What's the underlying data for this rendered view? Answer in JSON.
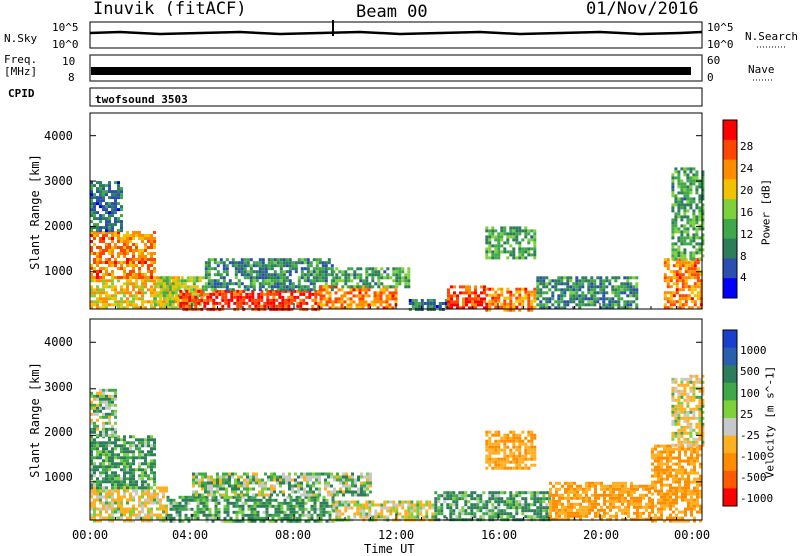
{
  "header": {
    "station": "Inuvik (fitACF)",
    "beam": "Beam 00",
    "date": "01/Nov/2016"
  },
  "strips": {
    "nsky_label": "N.Sky",
    "nsky_ticks": [
      "10^5",
      "10^0"
    ],
    "nsearch_ticks": [
      "10^5",
      "10^0"
    ],
    "nsearch_label": "N.Search",
    "freq_label": "Freq.",
    "freq_unit": "[MHz]",
    "freq_ticks": [
      "10",
      "8"
    ],
    "nave_ticks": [
      "60",
      "0"
    ],
    "nave_label": "Nave",
    "cpid_label": "CPID",
    "cpid_value": "twofsound 3503"
  },
  "colors": {
    "power": [
      "#0000ff",
      "#2a4fb0",
      "#2e7d5a",
      "#3fa84a",
      "#7fd13b",
      "#f2c200",
      "#ff8c00",
      "#ff4500",
      "#ff0000"
    ],
    "velocity": [
      "#1a3fcf",
      "#2a5fb0",
      "#2e7d5a",
      "#3fa84a",
      "#7fd13b",
      "#c8c8c8",
      "#ffb020",
      "#ff8c00",
      "#ff5a00",
      "#ff0000"
    ]
  },
  "chart_data": [
    {
      "type": "heatmap",
      "name": "power-panel",
      "xlabel": "",
      "ylabel": "Slant Range [km]",
      "xlim": [
        "00:00",
        "24:00"
      ],
      "ylim": [
        180,
        4500
      ],
      "y_ticks": [
        1000,
        2000,
        3000,
        4000
      ],
      "colorbar": {
        "label": "Power [dB]",
        "ticks": [
          4,
          8,
          12,
          16,
          20,
          24,
          28
        ],
        "range": [
          0,
          32
        ]
      },
      "regions": [
        {
          "x0": 0.0,
          "x1": 3.5,
          "y0": 180,
          "y1": 900,
          "value": 20
        },
        {
          "x0": 0.0,
          "x1": 2.5,
          "y0": 900,
          "y1": 1900,
          "value": 24
        },
        {
          "x0": 0.0,
          "x1": 1.2,
          "y0": 1900,
          "y1": 3000,
          "value": 8
        },
        {
          "x0": 2.5,
          "x1": 4.5,
          "y0": 300,
          "y1": 900,
          "value": 16
        },
        {
          "x0": 3.5,
          "x1": 9.0,
          "y0": 180,
          "y1": 600,
          "value": 28
        },
        {
          "x0": 4.5,
          "x1": 9.5,
          "y0": 600,
          "y1": 1300,
          "value": 10
        },
        {
          "x0": 9.0,
          "x1": 12.0,
          "y0": 180,
          "y1": 700,
          "value": 24
        },
        {
          "x0": 9.5,
          "x1": 12.5,
          "y0": 700,
          "y1": 1100,
          "value": 12
        },
        {
          "x0": 12.5,
          "x1": 14.0,
          "y0": 180,
          "y1": 400,
          "value": 8
        },
        {
          "x0": 14.0,
          "x1": 15.5,
          "y0": 180,
          "y1": 700,
          "value": 28
        },
        {
          "x0": 15.5,
          "x1": 17.5,
          "y0": 180,
          "y1": 650,
          "value": 24
        },
        {
          "x0": 17.5,
          "x1": 21.5,
          "y0": 180,
          "y1": 900,
          "value": 10
        },
        {
          "x0": 15.5,
          "x1": 17.5,
          "y0": 1300,
          "y1": 2000,
          "value": 12
        },
        {
          "x0": 22.5,
          "x1": 24.0,
          "y0": 180,
          "y1": 1300,
          "value": 24
        },
        {
          "x0": 22.8,
          "x1": 24.0,
          "y0": 1300,
          "y1": 3300,
          "value": 12
        }
      ]
    },
    {
      "type": "heatmap",
      "name": "velocity-panel",
      "xlabel": "Time UT",
      "ylabel": "Slant Range [km]",
      "xlim": [
        "00:00",
        "24:00"
      ],
      "ylim": [
        180,
        4500
      ],
      "x_ticks": [
        "00:00",
        "04:00",
        "08:00",
        "12:00",
        "16:00",
        "20:00",
        "00:00"
      ],
      "y_ticks": [
        1000,
        2000,
        3000,
        4000
      ],
      "colorbar": {
        "label": "Velocity [m s^-1]",
        "ticks": [
          1000,
          500,
          100,
          25,
          -25,
          -100,
          -500,
          -1000
        ]
      },
      "regions": [
        {
          "x0": 0.0,
          "x1": 3.0,
          "y0": 180,
          "y1": 900,
          "value": -100
        },
        {
          "x0": 0.0,
          "x1": 2.5,
          "y0": 900,
          "y1": 2000,
          "value": 100
        },
        {
          "x0": 0.0,
          "x1": 1.0,
          "y0": 2000,
          "y1": 3000,
          "value": 0
        },
        {
          "x0": 3.0,
          "x1": 9.5,
          "y0": 180,
          "y1": 700,
          "value": 100
        },
        {
          "x0": 4.0,
          "x1": 11.0,
          "y0": 700,
          "y1": 1200,
          "value": 0
        },
        {
          "x0": 9.5,
          "x1": 13.5,
          "y0": 180,
          "y1": 600,
          "value": -100
        },
        {
          "x0": 13.5,
          "x1": 18.0,
          "y0": 180,
          "y1": 800,
          "value": 100
        },
        {
          "x0": 15.5,
          "x1": 17.5,
          "y0": 1300,
          "y1": 2100,
          "value": -500
        },
        {
          "x0": 18.0,
          "x1": 22.0,
          "y0": 180,
          "y1": 1000,
          "value": -500
        },
        {
          "x0": 22.0,
          "x1": 24.0,
          "y0": 180,
          "y1": 1800,
          "value": -500
        },
        {
          "x0": 22.8,
          "x1": 24.0,
          "y0": 1800,
          "y1": 3300,
          "value": -100
        }
      ]
    }
  ]
}
